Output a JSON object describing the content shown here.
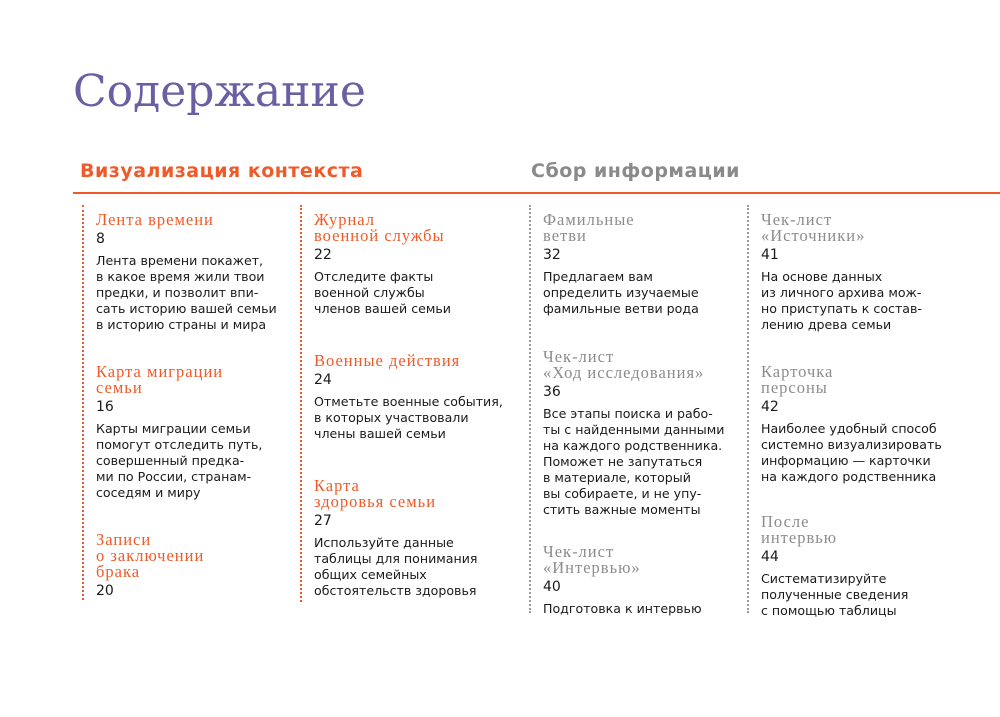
{
  "title": "Содержание",
  "colors": {
    "accent": "#f05a28",
    "title": "#6a5fa3",
    "muted": "#8c8c8c"
  },
  "sections": [
    {
      "heading": "Визуализация контекста",
      "columns": [
        [
          {
            "title": "Лента времени",
            "page": "8",
            "text": "Лента времени покажет,\nв какое время жили твои\nпредки, и позволит впи-\nсать историю вашей семьи\nв историю страны и мира"
          },
          {
            "title": "Карта миграции\nсемьи",
            "page": "16",
            "text": "Карты миграции семьи\nпомогут отследить путь,\nсовершенный предка-\nми по России, странам-\nсоседям и миру"
          },
          {
            "title": "Записи\nо заключении\nбрака",
            "page": "20",
            "text": ""
          }
        ],
        [
          {
            "title": "Журнал\nвоенной службы",
            "page": "22",
            "text": "Отследите факты\nвоенной службы\nчленов вашей семьи"
          },
          {
            "title": "Военные действия",
            "page": "24",
            "text": "Отметьте военные события,\nв которых участвовали\nчлены вашей семьи"
          },
          {
            "title": "Карта\nздоровья семьи",
            "page": "27",
            "text": "Используйте данные\nтаблицы для понимания\nобщих семейных\nобстоятельств здоровья"
          }
        ]
      ]
    },
    {
      "heading": "Сбор информации",
      "columns": [
        [
          {
            "title": "Фамильные\nветви",
            "page": "32",
            "text": "Предлагаем вам\nопределить изучаемые\nфамильные ветви рода"
          },
          {
            "title": "Чек-лист\n«Ход исследования»",
            "page": "36",
            "text": "Все этапы поиска и рабо-\nты с найденными данными\nна каждого родственника.\nПоможет не запутаться\nв материале, который\nвы собираете, и не упу-\nстить важные моменты"
          },
          {
            "title": "Чек-лист\n«Интервью»",
            "page": "40",
            "text": "Подготовка к интервью"
          }
        ],
        [
          {
            "title": "Чек-лист\n«Источники»",
            "page": "41",
            "text": "На основе данных\nиз личного архива мож-\nно приступать к состав-\nлению древа семьи"
          },
          {
            "title": "Карточка\nперсоны",
            "page": "42",
            "text": "Наиболее удобный способ\nсистемно визуализировать\nинформацию — карточки\nна каждого родственника"
          },
          {
            "title": "После\nинтервью",
            "page": "44",
            "text": "Систематизируйте\nполученные сведения\nс помощью таблицы"
          }
        ]
      ]
    }
  ]
}
